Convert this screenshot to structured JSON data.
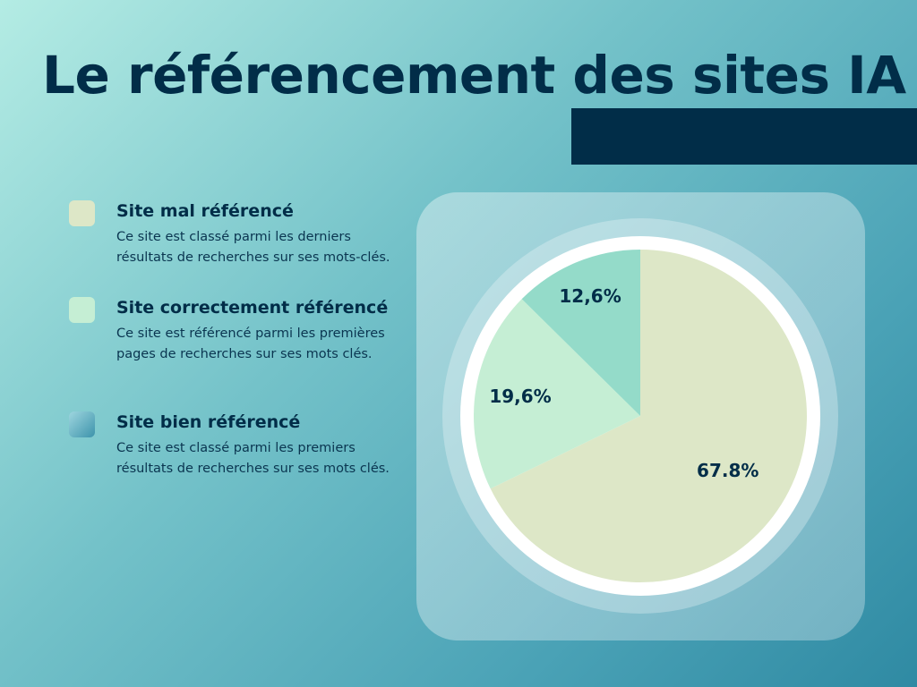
{
  "title": "Le référencement des sites IA",
  "legend": [
    {
      "title": "Site mal référencé",
      "description": "Ce site est classé parmi les derniers résultats de recherches sur ses mots-clés."
    },
    {
      "title": "Site correctement référencé",
      "description": "Ce site est référencé parmi les premières pages de recherches sur ses mots clés."
    },
    {
      "title": "Site bien référencé",
      "description": "Ce site est classé parmi les premiers résultats de recherches sur ses mots clés."
    }
  ],
  "colors": {
    "title": "#012d48",
    "slice_mal": "#dde7c7",
    "slice_correct": "#c5eed4",
    "slice_bien": "#94dbc9",
    "swatch_bien_gradient": [
      "#9ed6df",
      "#3d93ab"
    ]
  },
  "chart_data": {
    "type": "pie",
    "title": "",
    "labels": [
      "Site mal référencé",
      "Site correctement référencé",
      "Site bien référencé"
    ],
    "values": [
      67.8,
      19.6,
      12.6
    ],
    "value_labels": [
      "67.8%",
      "19,6%",
      "12,6%"
    ],
    "colors": [
      "#dde7c7",
      "#c5eed4",
      "#94dbc9"
    ],
    "start": "top",
    "direction": "clockwise",
    "legend": "left"
  }
}
